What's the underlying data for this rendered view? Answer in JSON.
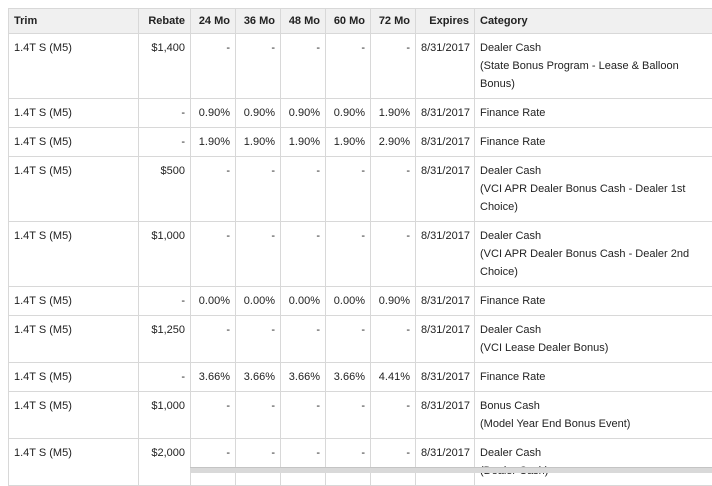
{
  "headers": [
    "Trim",
    "Rebate",
    "24 Mo",
    "36 Mo",
    "48 Mo",
    "60 Mo",
    "72 Mo",
    "Expires",
    "Category"
  ],
  "rows": [
    {
      "trim": "1.4T S (M5)",
      "rebate": "$1,400",
      "mo24": "-",
      "mo36": "-",
      "mo48": "-",
      "mo60": "-",
      "mo72": "-",
      "expires": "8/31/2017",
      "category": [
        "Dealer Cash",
        "(State Bonus Program - Lease & Balloon",
        "Bonus)"
      ]
    },
    {
      "trim": "1.4T S (M5)",
      "rebate": "-",
      "mo24": "0.90%",
      "mo36": "0.90%",
      "mo48": "0.90%",
      "mo60": "0.90%",
      "mo72": "1.90%",
      "expires": "8/31/2017",
      "category": [
        "Finance Rate"
      ]
    },
    {
      "trim": "1.4T S (M5)",
      "rebate": "-",
      "mo24": "1.90%",
      "mo36": "1.90%",
      "mo48": "1.90%",
      "mo60": "1.90%",
      "mo72": "2.90%",
      "expires": "8/31/2017",
      "category": [
        "Finance Rate"
      ]
    },
    {
      "trim": "1.4T S (M5)",
      "rebate": "$500",
      "mo24": "-",
      "mo36": "-",
      "mo48": "-",
      "mo60": "-",
      "mo72": "-",
      "expires": "8/31/2017",
      "category": [
        "Dealer Cash",
        "(VCI APR Dealer Bonus Cash - Dealer 1st",
        "Choice)"
      ]
    },
    {
      "trim": "1.4T S (M5)",
      "rebate": "$1,000",
      "mo24": "-",
      "mo36": "-",
      "mo48": "-",
      "mo60": "-",
      "mo72": "-",
      "expires": "8/31/2017",
      "category": [
        "Dealer Cash",
        "(VCI APR Dealer Bonus Cash - Dealer 2nd",
        "Choice)"
      ]
    },
    {
      "trim": "1.4T S (M5)",
      "rebate": "-",
      "mo24": "0.00%",
      "mo36": "0.00%",
      "mo48": "0.00%",
      "mo60": "0.00%",
      "mo72": "0.90%",
      "expires": "8/31/2017",
      "category": [
        "Finance Rate"
      ]
    },
    {
      "trim": "1.4T S (M5)",
      "rebate": "$1,250",
      "mo24": "-",
      "mo36": "-",
      "mo48": "-",
      "mo60": "-",
      "mo72": "-",
      "expires": "8/31/2017",
      "category": [
        "Dealer Cash",
        "(VCI Lease Dealer Bonus)"
      ]
    },
    {
      "trim": "1.4T S (M5)",
      "rebate": "-",
      "mo24": "3.66%",
      "mo36": "3.66%",
      "mo48": "3.66%",
      "mo60": "3.66%",
      "mo72": "4.41%",
      "expires": "8/31/2017",
      "category": [
        "Finance Rate"
      ]
    },
    {
      "trim": "1.4T S (M5)",
      "rebate": "$1,000",
      "mo24": "-",
      "mo36": "-",
      "mo48": "-",
      "mo60": "-",
      "mo72": "-",
      "expires": "8/31/2017",
      "category": [
        "Bonus Cash",
        "(Model Year End Bonus Event)"
      ]
    },
    {
      "trim": "1.4T S (M5)",
      "rebate": "$2,000",
      "mo24": "-",
      "mo36": "-",
      "mo48": "-",
      "mo60": "-",
      "mo72": "-",
      "expires": "8/31/2017",
      "category": [
        "Dealer Cash",
        "(Dealer Cash)"
      ]
    }
  ]
}
